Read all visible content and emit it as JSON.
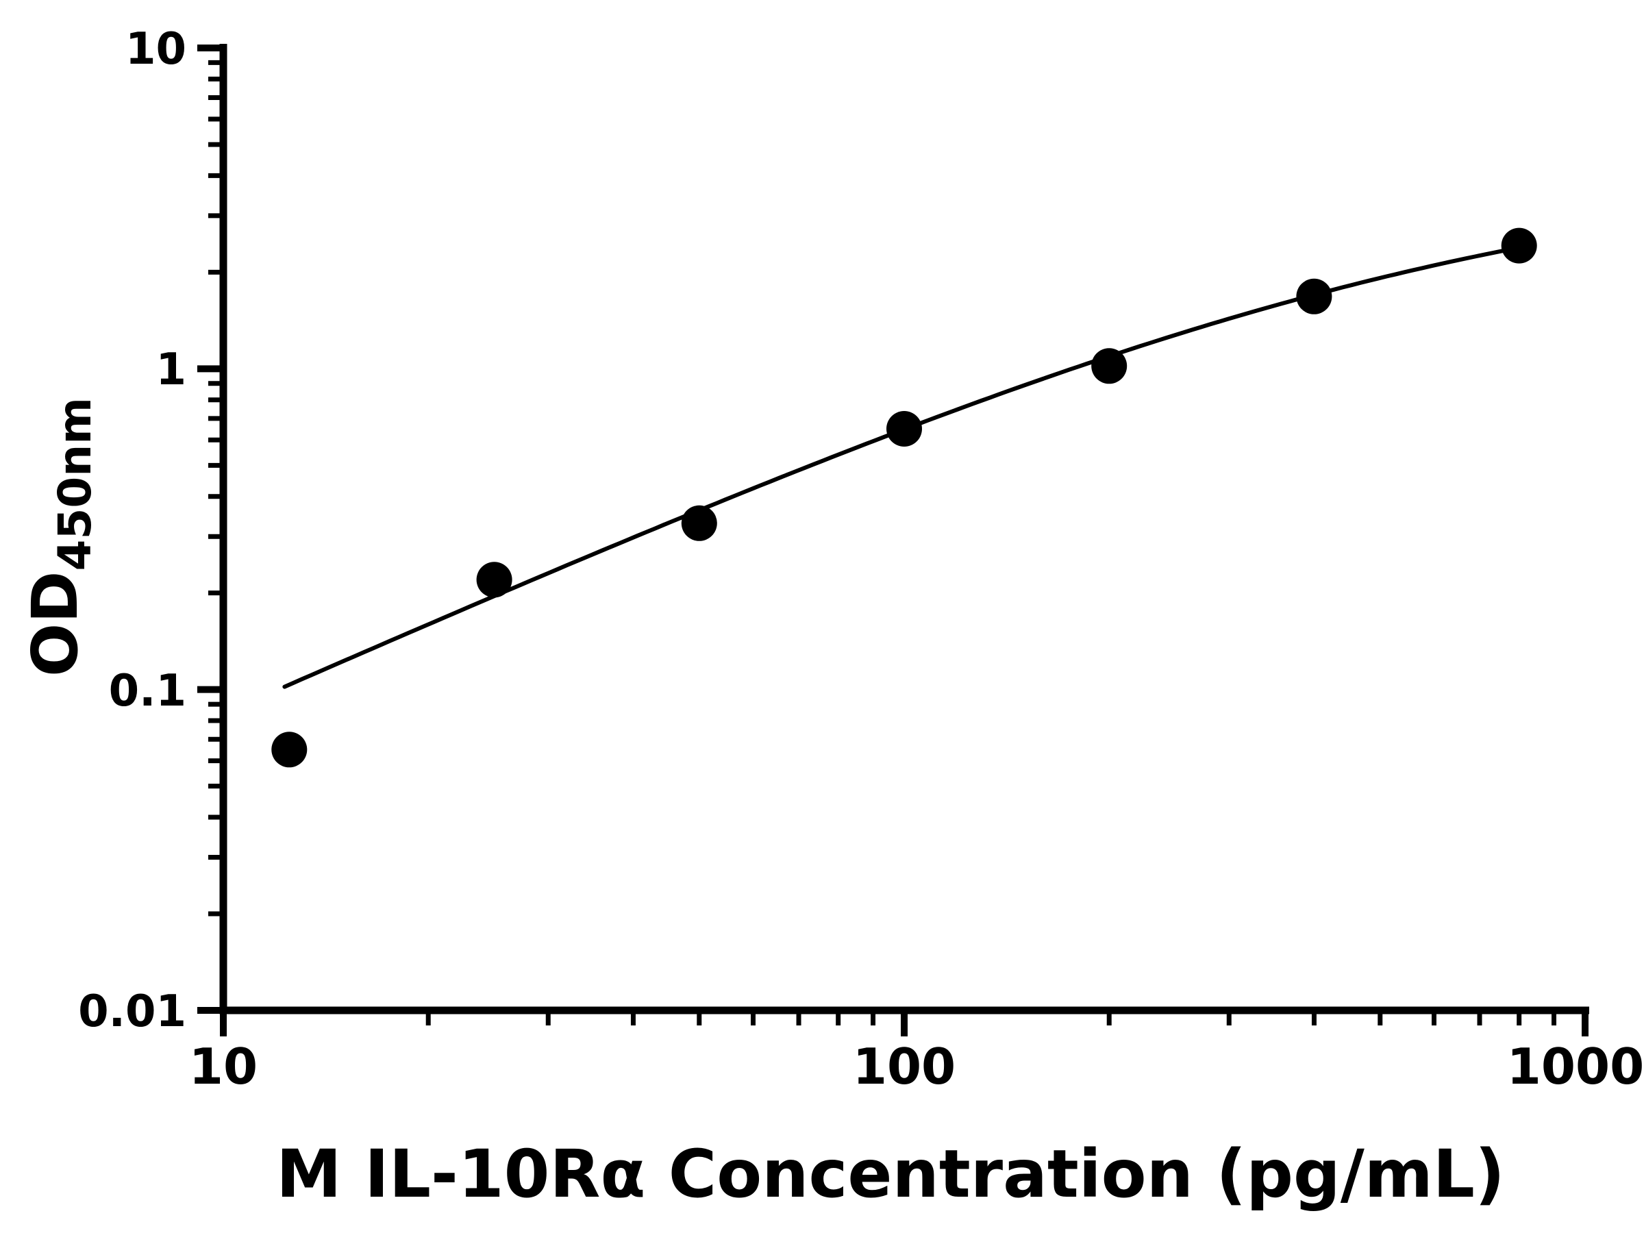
{
  "page": {
    "background": "#ffffff"
  },
  "chart_data": {
    "type": "scatter",
    "title": "",
    "xlabel": "M IL-10Rα Concentration (pg/mL)",
    "ylabel_main": "OD",
    "ylabel_sub": "450nm",
    "x_scale": "log",
    "y_scale": "log",
    "xlim": [
      10,
      1000
    ],
    "ylim": [
      0.01,
      10
    ],
    "x_ticks": [
      10,
      100,
      1000
    ],
    "x_tick_labels": [
      "10",
      "100",
      "1000"
    ],
    "y_ticks": [
      0.01,
      0.1,
      1,
      10
    ],
    "y_tick_labels": [
      "0.01",
      "0.1",
      "1",
      "10"
    ],
    "grid": false,
    "legend": false,
    "marker_color": "#000000",
    "curve_color": "#000000",
    "series": [
      {
        "x": [
          12.5,
          25,
          50,
          100,
          200,
          400,
          800
        ],
        "y": [
          0.065,
          0.22,
          0.33,
          0.65,
          1.02,
          1.68,
          2.42
        ]
      }
    ],
    "fit_curve": {
      "model": "4PL, y = top / (1 + (c/x)^b)",
      "top": 4.2,
      "c": 600,
      "b": 0.95,
      "x_start": 12.3,
      "x_end": 800
    }
  }
}
